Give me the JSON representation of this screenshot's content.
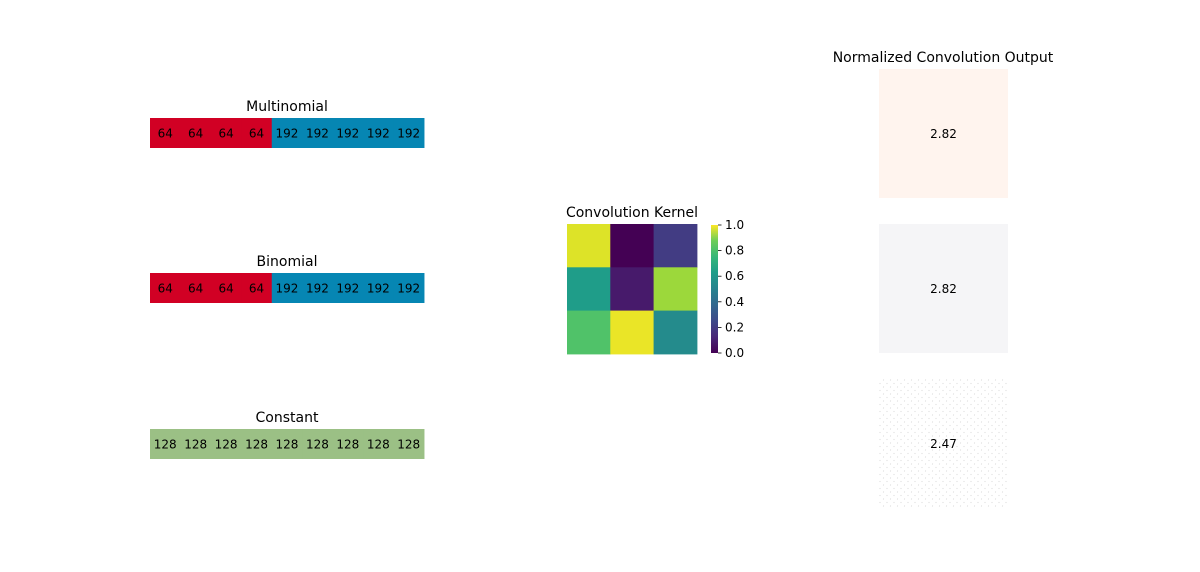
{
  "chart_data": [
    {
      "type": "heatmap",
      "title": "Multinomial",
      "values": [
        64,
        64,
        64,
        64,
        192,
        192,
        192,
        192,
        192
      ],
      "cell_colors": [
        "#d10024",
        "#d10024",
        "#d10024",
        "#d10024",
        "#0686b3",
        "#0686b3",
        "#0686b3",
        "#0686b3",
        "#0686b3"
      ]
    },
    {
      "type": "heatmap",
      "title": "Binomial",
      "values": [
        64,
        64,
        64,
        64,
        192,
        192,
        192,
        192,
        192
      ],
      "cell_colors": [
        "#d10024",
        "#d10024",
        "#d10024",
        "#d10024",
        "#0686b3",
        "#0686b3",
        "#0686b3",
        "#0686b3",
        "#0686b3"
      ]
    },
    {
      "type": "heatmap",
      "title": "Constant",
      "values": [
        128,
        128,
        128,
        128,
        128,
        128,
        128,
        128,
        128
      ],
      "cell_colors": [
        "#9bc085",
        "#9bc085",
        "#9bc085",
        "#9bc085",
        "#9bc085",
        "#9bc085",
        "#9bc085",
        "#9bc085",
        "#9bc085"
      ]
    },
    {
      "type": "heatmap",
      "title": "Convolution Kernel",
      "matrix": [
        [
          0.95,
          0.0,
          0.18
        ],
        [
          0.55,
          0.07,
          0.85
        ],
        [
          0.72,
          0.97,
          0.48
        ]
      ],
      "colormap": "viridis",
      "colorbar": {
        "range": [
          0.0,
          1.0
        ],
        "ticks": [
          "0.0",
          "0.2",
          "0.4",
          "0.6",
          "0.8",
          "1.0"
        ]
      }
    },
    {
      "type": "heatmap",
      "title": "Normalized Convolution Output",
      "panels": [
        {
          "value": "2.82",
          "color": "#fff4ee"
        },
        {
          "value": "2.82",
          "color": "#f5f5f7"
        },
        {
          "value": "2.47",
          "color": "#ffffff",
          "texture": "#dcdcdc"
        }
      ]
    }
  ]
}
